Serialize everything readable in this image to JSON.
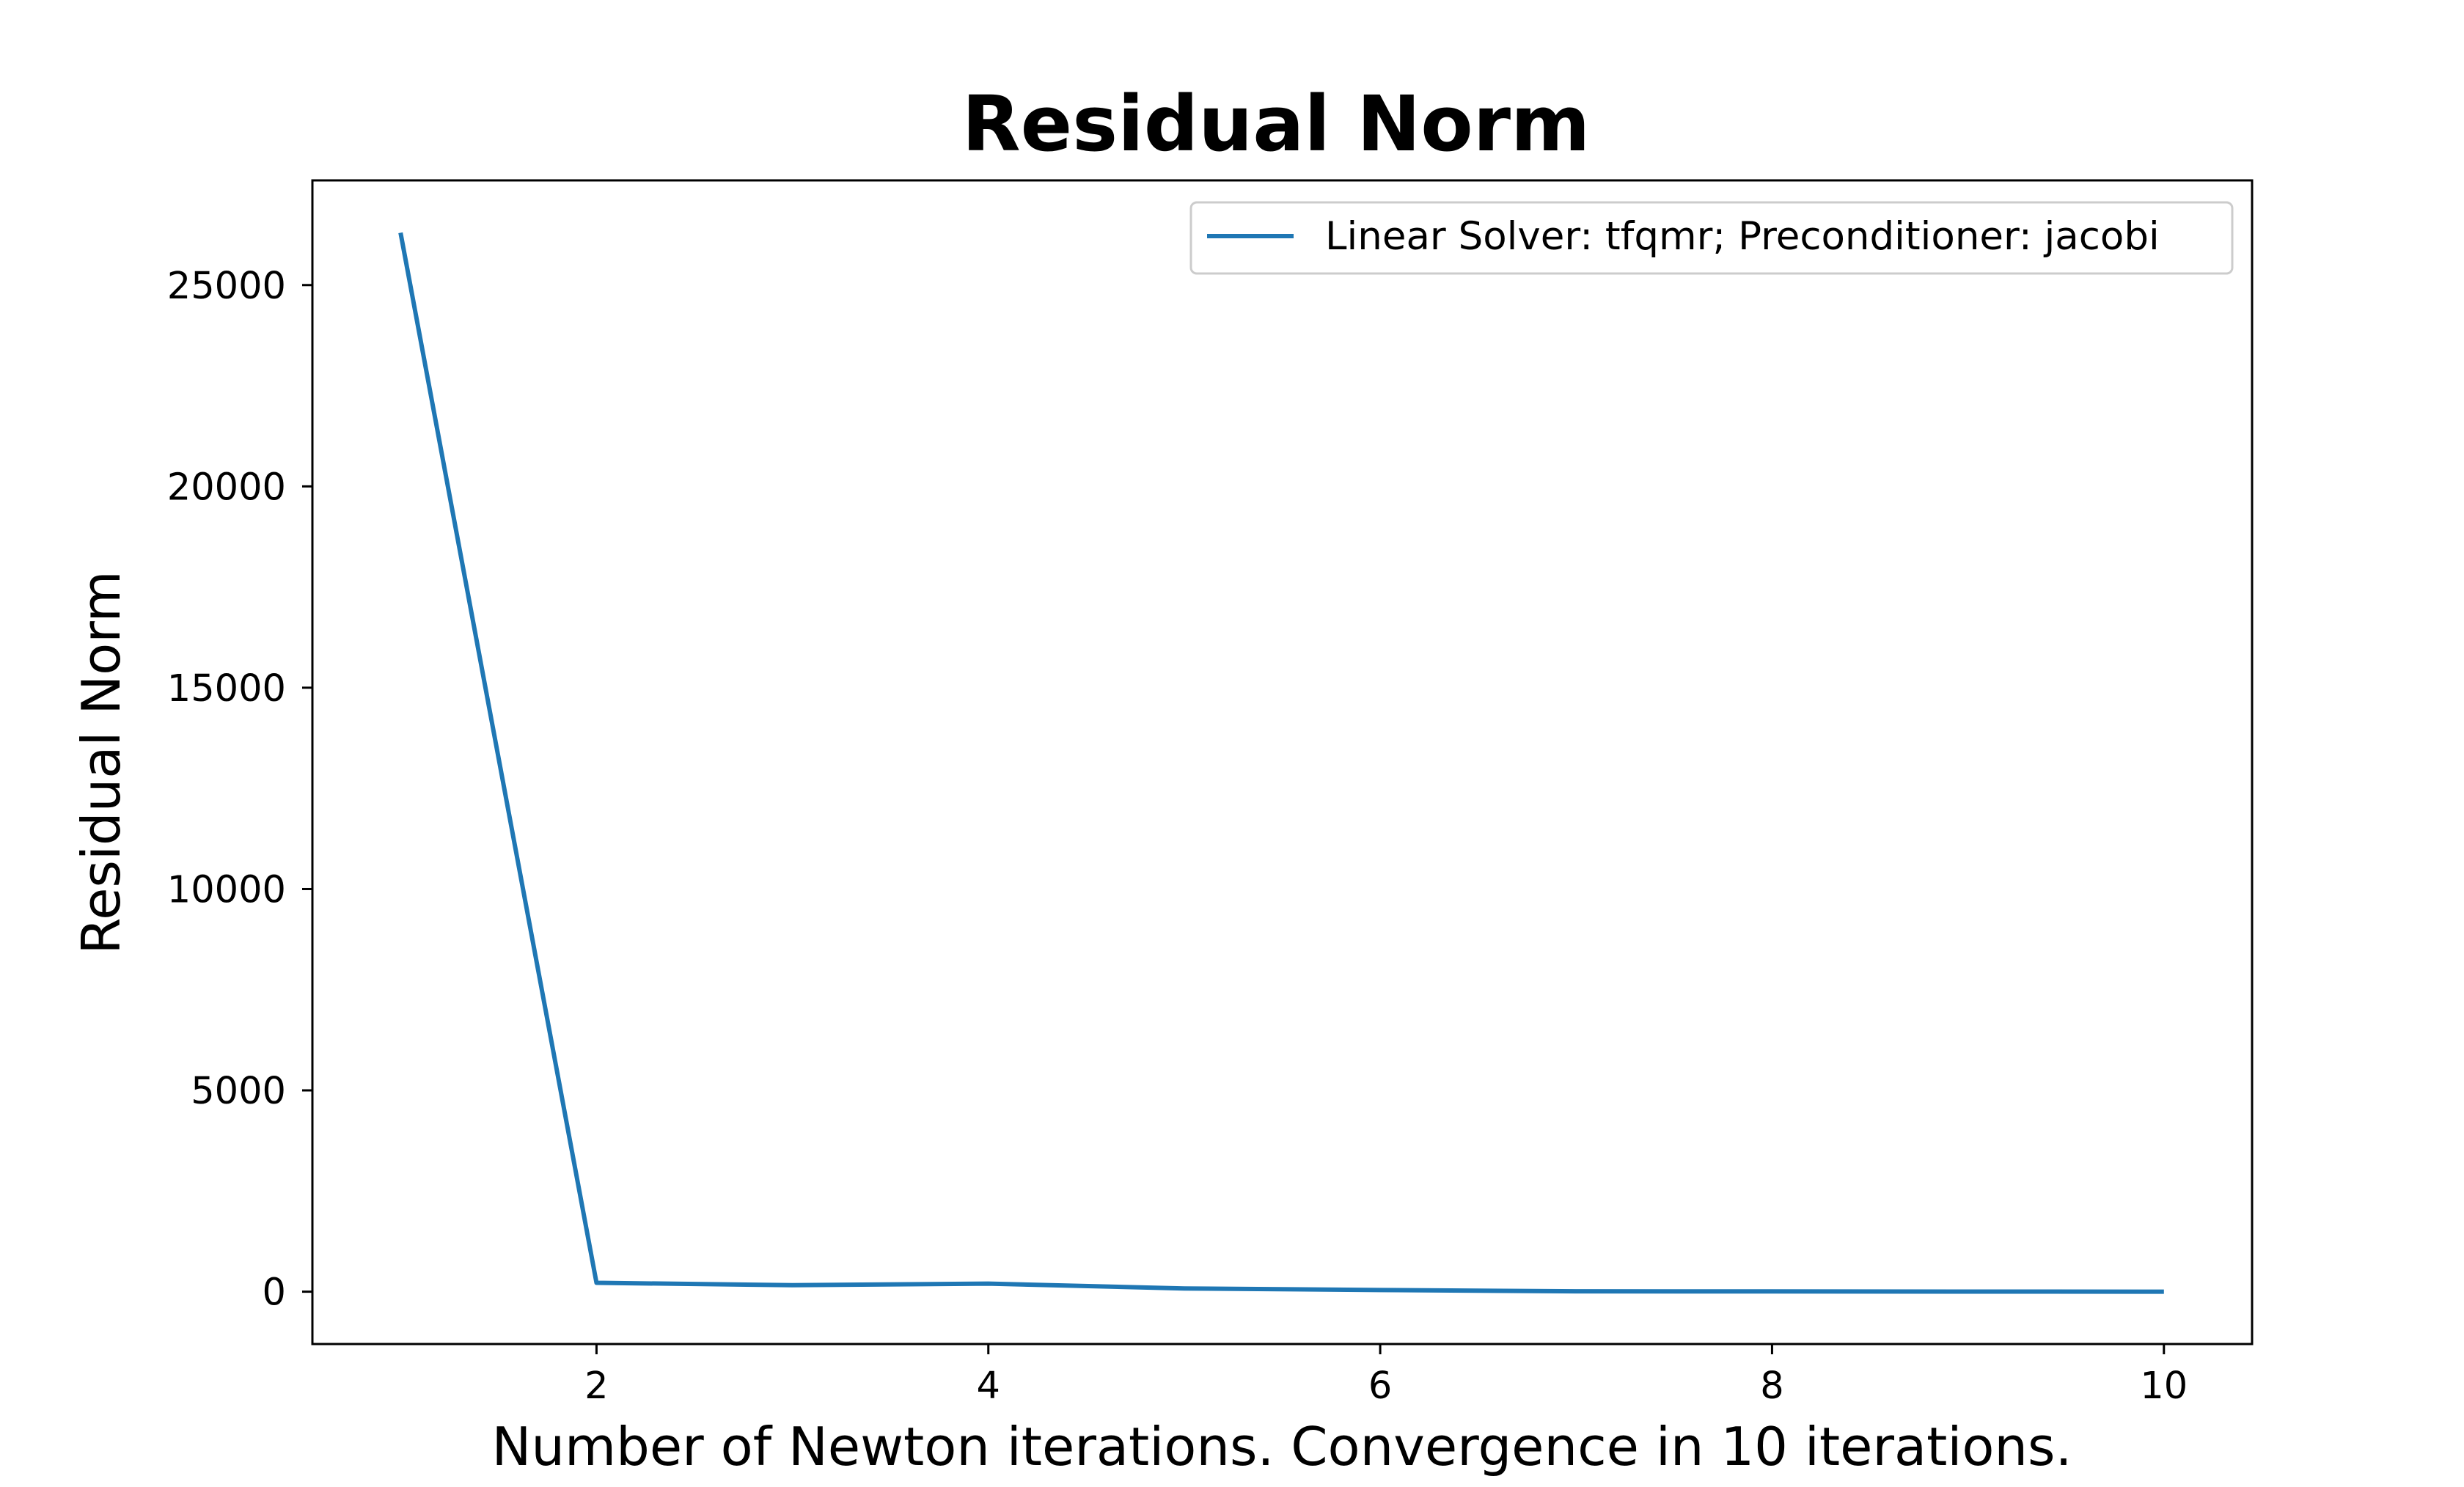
{
  "chart_data": {
    "type": "line",
    "title": "Residual Norm",
    "xlabel": "Number of Newton iterations. Convergence in 10 iterations.",
    "ylabel": "Residual Norm",
    "xlim": [
      0.55,
      10.45
    ],
    "ylim": [
      -1300,
      27600
    ],
    "x_ticks": [
      2,
      4,
      6,
      8,
      10
    ],
    "x_tick_labels": [
      "2",
      "4",
      "6",
      "8",
      "10"
    ],
    "y_ticks": [
      0,
      5000,
      10000,
      15000,
      20000,
      25000
    ],
    "y_tick_labels": [
      "0",
      "5000",
      "10000",
      "15000",
      "20000",
      "25000"
    ],
    "grid": false,
    "legend_position": "top-right",
    "x": [
      1,
      2,
      3,
      4,
      5,
      6,
      7,
      8,
      9,
      10
    ],
    "series": [
      {
        "name": "Linear Solver: tfqmr; Preconditioner: jacobi",
        "color": "#1f77b4",
        "values": [
          26300,
          220,
          160,
          200,
          80,
          40,
          10,
          5,
          2,
          1
        ]
      }
    ]
  }
}
